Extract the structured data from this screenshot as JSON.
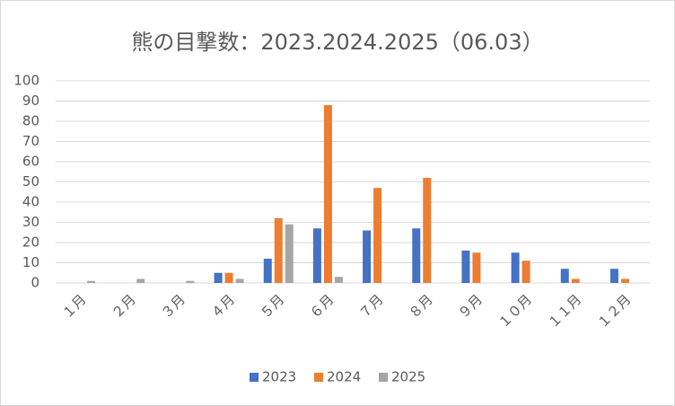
{
  "chart_data": {
    "type": "bar",
    "title": "熊の目撃数：2023.2024.2025（06.03）",
    "categories": [
      "１月",
      "２月",
      "３月",
      "４月",
      "５月",
      "６月",
      "７月",
      "８月",
      "９月",
      "１０月",
      "１１月",
      "１２月"
    ],
    "series": [
      {
        "name": "2023",
        "color": "#4472c4",
        "values": [
          0,
          0,
          0,
          5,
          12,
          27,
          26,
          27,
          16,
          15,
          7,
          7
        ]
      },
      {
        "name": "2024",
        "color": "#ed7d31",
        "values": [
          0,
          0,
          0,
          5,
          32,
          88,
          47,
          52,
          15,
          11,
          2,
          2
        ]
      },
      {
        "name": "2025",
        "color": "#a5a5a5",
        "values": [
          1,
          2,
          1,
          2,
          29,
          3,
          null,
          null,
          null,
          null,
          null,
          null
        ]
      }
    ],
    "ylim": [
      0,
      100
    ],
    "yticks": [
      0,
      10,
      20,
      30,
      40,
      50,
      60,
      70,
      80,
      90,
      100
    ],
    "grid": true,
    "legend": "bottom"
  }
}
